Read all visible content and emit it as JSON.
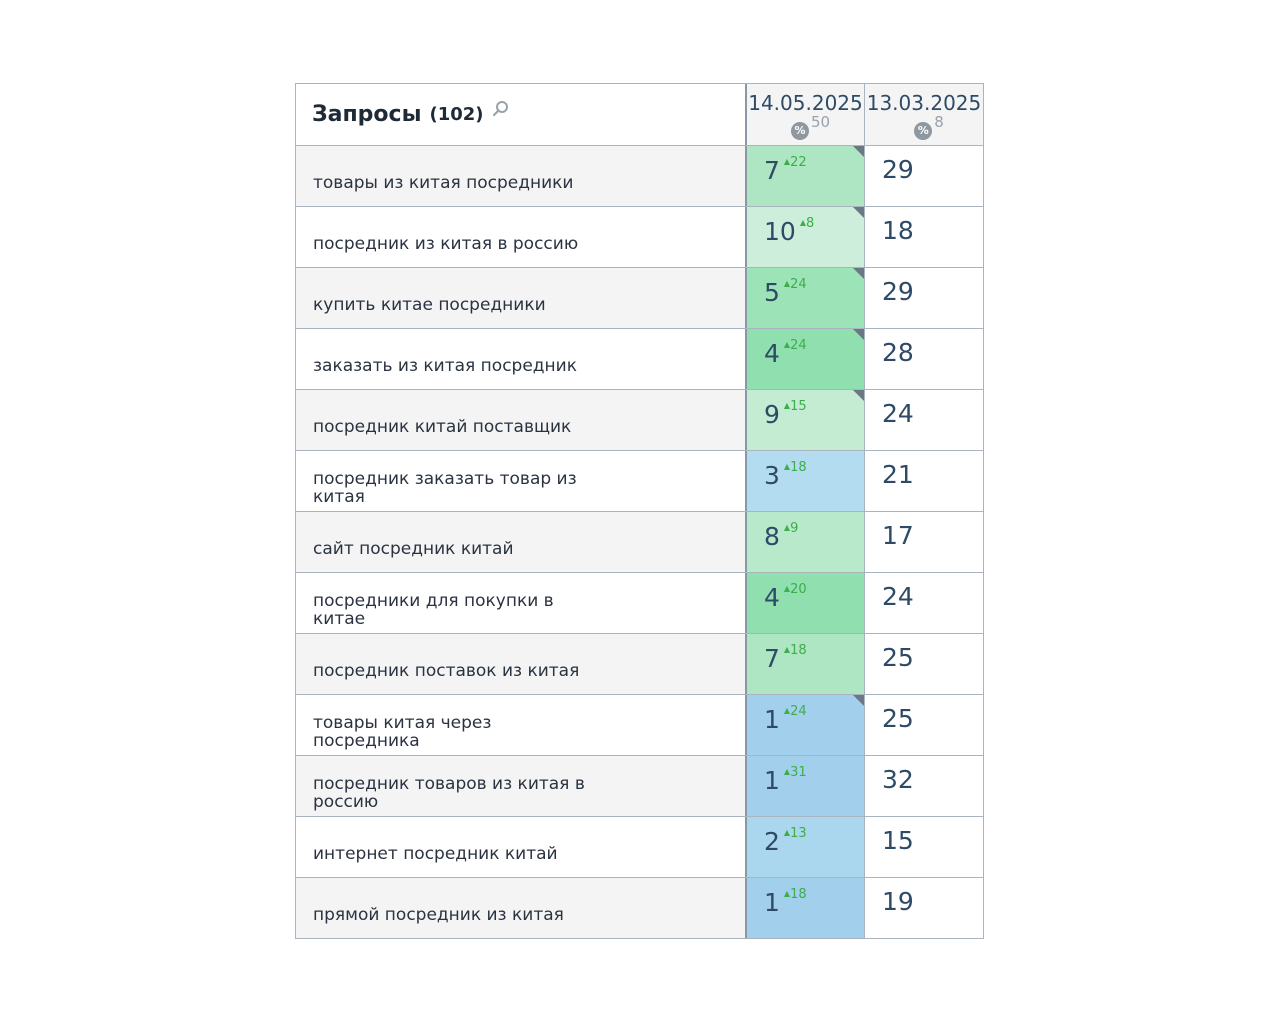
{
  "header": {
    "title": "Запросы",
    "count": "(102)",
    "dates": [
      {
        "date": "14.05.2025",
        "badge": "50"
      },
      {
        "date": "13.03.2025",
        "badge": "8"
      }
    ]
  },
  "rows": [
    {
      "query": "товары из китая посредники",
      "pos": "7",
      "delta": "22",
      "prev": "29",
      "color": "#aee6c3",
      "corner": true
    },
    {
      "query": "посредник из китая в россию",
      "pos": "10",
      "delta": "8",
      "prev": "18",
      "color": "#cdeedb",
      "corner": true
    },
    {
      "query": "купить китае посредники",
      "pos": "5",
      "delta": "24",
      "prev": "29",
      "color": "#9ce3b7",
      "corner": true
    },
    {
      "query": "заказать из китая посредник",
      "pos": "4",
      "delta": "24",
      "prev": "28",
      "color": "#8fe0ae",
      "corner": true
    },
    {
      "query": "посредник китай поставщик",
      "pos": "9",
      "delta": "15",
      "prev": "24",
      "color": "#c3ecd3",
      "corner": true
    },
    {
      "query": "посредник заказать товар из китая",
      "pos": "3",
      "delta": "18",
      "prev": "21",
      "color": "#b4dcf0",
      "corner": false
    },
    {
      "query": "сайт посредник китай",
      "pos": "8",
      "delta": "9",
      "prev": "17",
      "color": "#b7e9ca",
      "corner": false
    },
    {
      "query": "посредники для покупки в китае",
      "pos": "4",
      "delta": "20",
      "prev": "24",
      "color": "#8fe0ae",
      "corner": false
    },
    {
      "query": "посредник поставок из китая",
      "pos": "7",
      "delta": "18",
      "prev": "25",
      "color": "#aee6c3",
      "corner": false
    },
    {
      "query": "товары китая через посредника",
      "pos": "1",
      "delta": "24",
      "prev": "25",
      "color": "#a2d0ec",
      "corner": true
    },
    {
      "query": "посредник товаров из китая в россию",
      "pos": "1",
      "delta": "31",
      "prev": "32",
      "color": "#a2d0ec",
      "corner": false
    },
    {
      "query": "интернет посредник китай",
      "pos": "2",
      "delta": "13",
      "prev": "15",
      "color": "#aad6ee",
      "corner": false
    },
    {
      "query": "прямой посредник из китая",
      "pos": "1",
      "delta": "18",
      "prev": "19",
      "color": "#a2d0ec",
      "corner": false
    }
  ]
}
